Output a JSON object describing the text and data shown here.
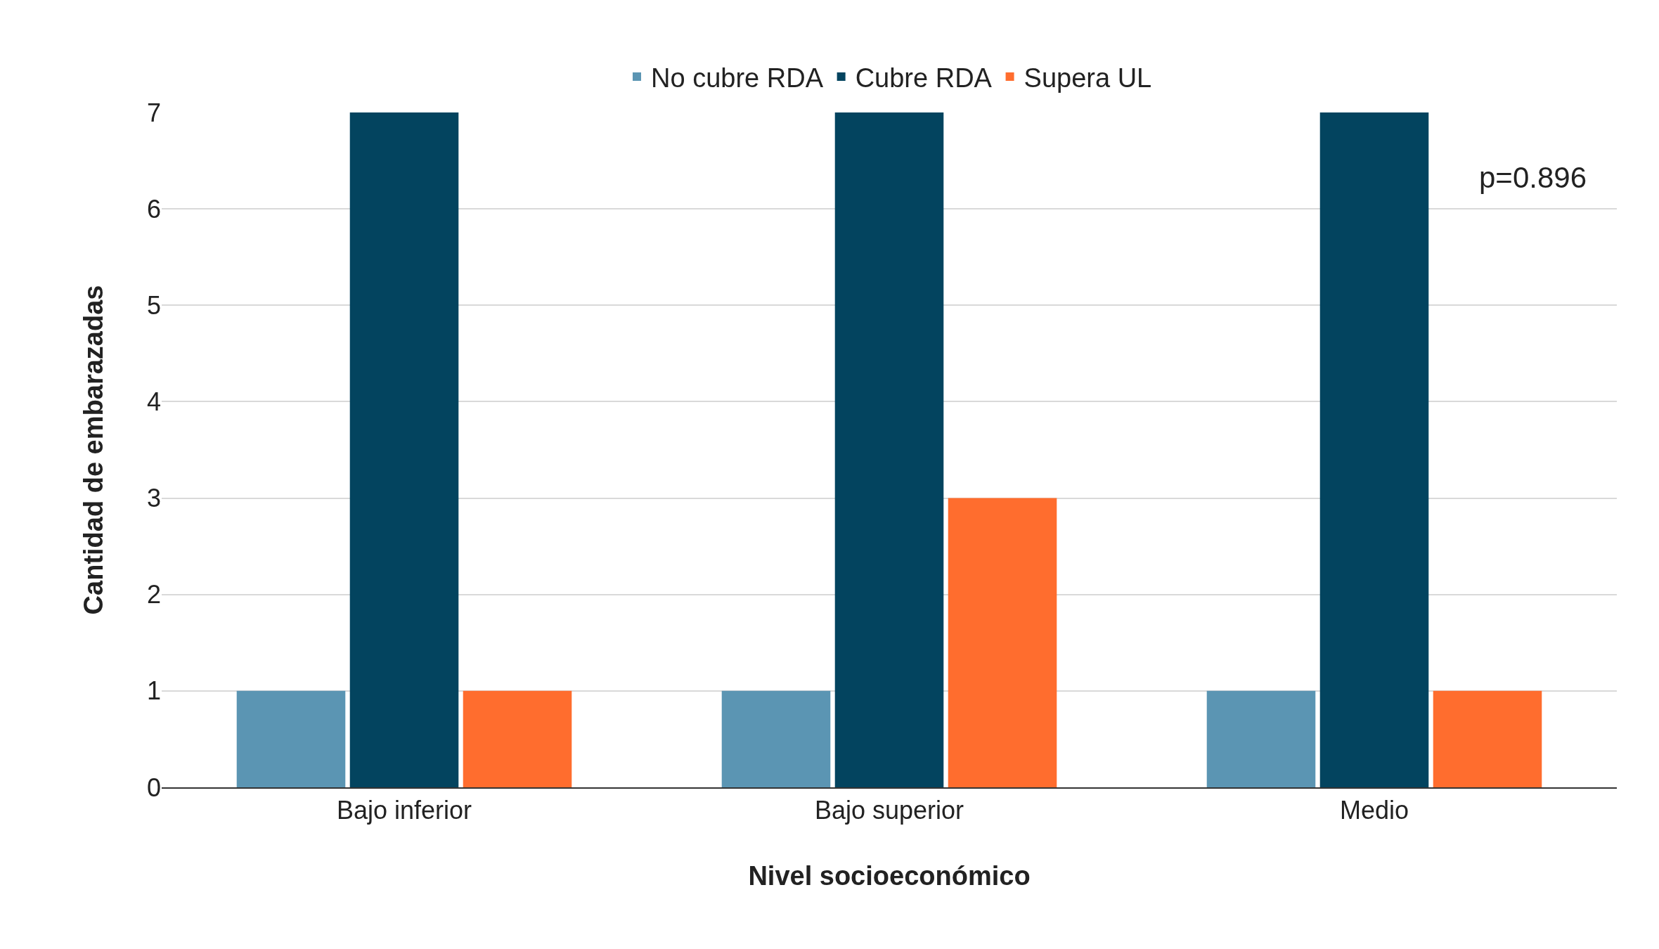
{
  "chart_data": {
    "type": "bar",
    "xlabel": "Nivel socioeconómico",
    "ylabel": "Cantidad de embarazadas",
    "categories": [
      "Bajo inferior",
      "Bajo superior",
      "Medio"
    ],
    "series": [
      {
        "name": "No cubre RDA",
        "color": "#5b95b3",
        "values": [
          1,
          1,
          1
        ]
      },
      {
        "name": "Cubre RDA",
        "color": "#03445f",
        "values": [
          7,
          7,
          7
        ]
      },
      {
        "name": "Supera UL",
        "color": "#ff6d2e",
        "values": [
          1,
          3,
          1
        ]
      }
    ],
    "ylim": [
      0,
      7
    ],
    "yticks": [
      0,
      1,
      2,
      3,
      4,
      5,
      6,
      7
    ],
    "grid": "y",
    "legend": "top",
    "annotations": [
      "p=0.896"
    ]
  }
}
